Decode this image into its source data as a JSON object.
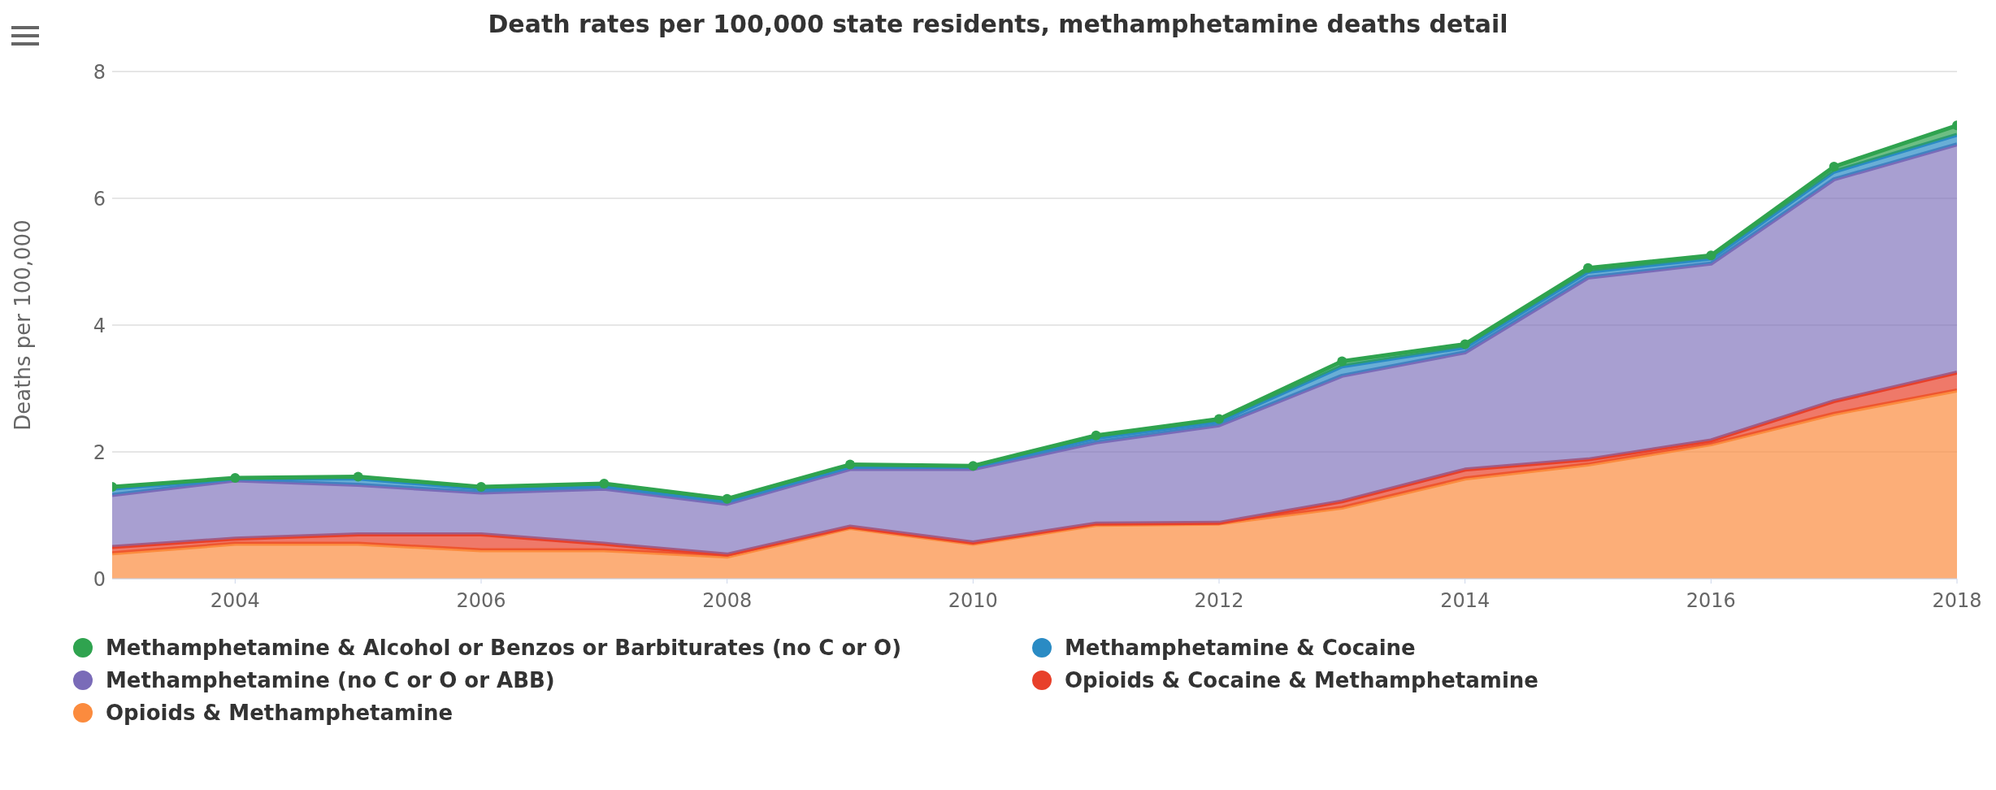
{
  "chart_data": {
    "type": "area",
    "stacked": true,
    "title": "Death rates per 100,000 state residents, methamphetamine deaths detail",
    "ylabel": "Deaths per 100,000",
    "x": [
      2003,
      2004,
      2005,
      2006,
      2007,
      2008,
      2009,
      2010,
      2011,
      2012,
      2013,
      2014,
      2015,
      2016,
      2017,
      2018
    ],
    "xlim": [
      2003,
      2018
    ],
    "xticks": [
      2004,
      2006,
      2008,
      2010,
      2012,
      2014,
      2016,
      2018
    ],
    "ylim": [
      0,
      8
    ],
    "yticks": [
      0,
      2,
      4,
      6,
      8
    ],
    "grid": "y",
    "legend": "bottom",
    "series": [
      {
        "name": "Opioids & Methamphetamine",
        "color": "#fb8b3e",
        "values": [
          0.4,
          0.55,
          0.55,
          0.45,
          0.45,
          0.35,
          0.8,
          0.55,
          0.85,
          0.87,
          1.12,
          1.58,
          1.8,
          2.12,
          2.6,
          2.97
        ]
      },
      {
        "name": "Opioids & Cocaine & Methamphetamine",
        "color": "#e8402a",
        "values": [
          0.1,
          0.08,
          0.15,
          0.25,
          0.1,
          0.03,
          0.02,
          0.02,
          0.02,
          0.01,
          0.1,
          0.14,
          0.08,
          0.06,
          0.2,
          0.28
        ]
      },
      {
        "name": "Methamphetamine (no C or O or ABB)",
        "color": "#7a6bb8",
        "values": [
          0.82,
          0.92,
          0.78,
          0.66,
          0.87,
          0.8,
          0.91,
          1.16,
          1.28,
          1.54,
          1.98,
          1.85,
          2.87,
          2.79,
          3.5,
          3.6
        ]
      },
      {
        "name": "Methamphetamine & Cocaine",
        "color": "#2a8bc4",
        "values": [
          0.1,
          0.03,
          0.1,
          0.06,
          0.05,
          0.05,
          0.04,
          0.04,
          0.07,
          0.06,
          0.15,
          0.08,
          0.09,
          0.08,
          0.12,
          0.15
        ]
      },
      {
        "name": "Methamphetamine & Alcohol or Benzos or Barbiturates (no C or O)",
        "color": "#2fa34f",
        "marker": "circle",
        "values": [
          0.03,
          0.01,
          0.03,
          0.03,
          0.03,
          0.03,
          0.03,
          0.01,
          0.04,
          0.04,
          0.08,
          0.05,
          0.06,
          0.05,
          0.08,
          0.15
        ]
      }
    ]
  }
}
